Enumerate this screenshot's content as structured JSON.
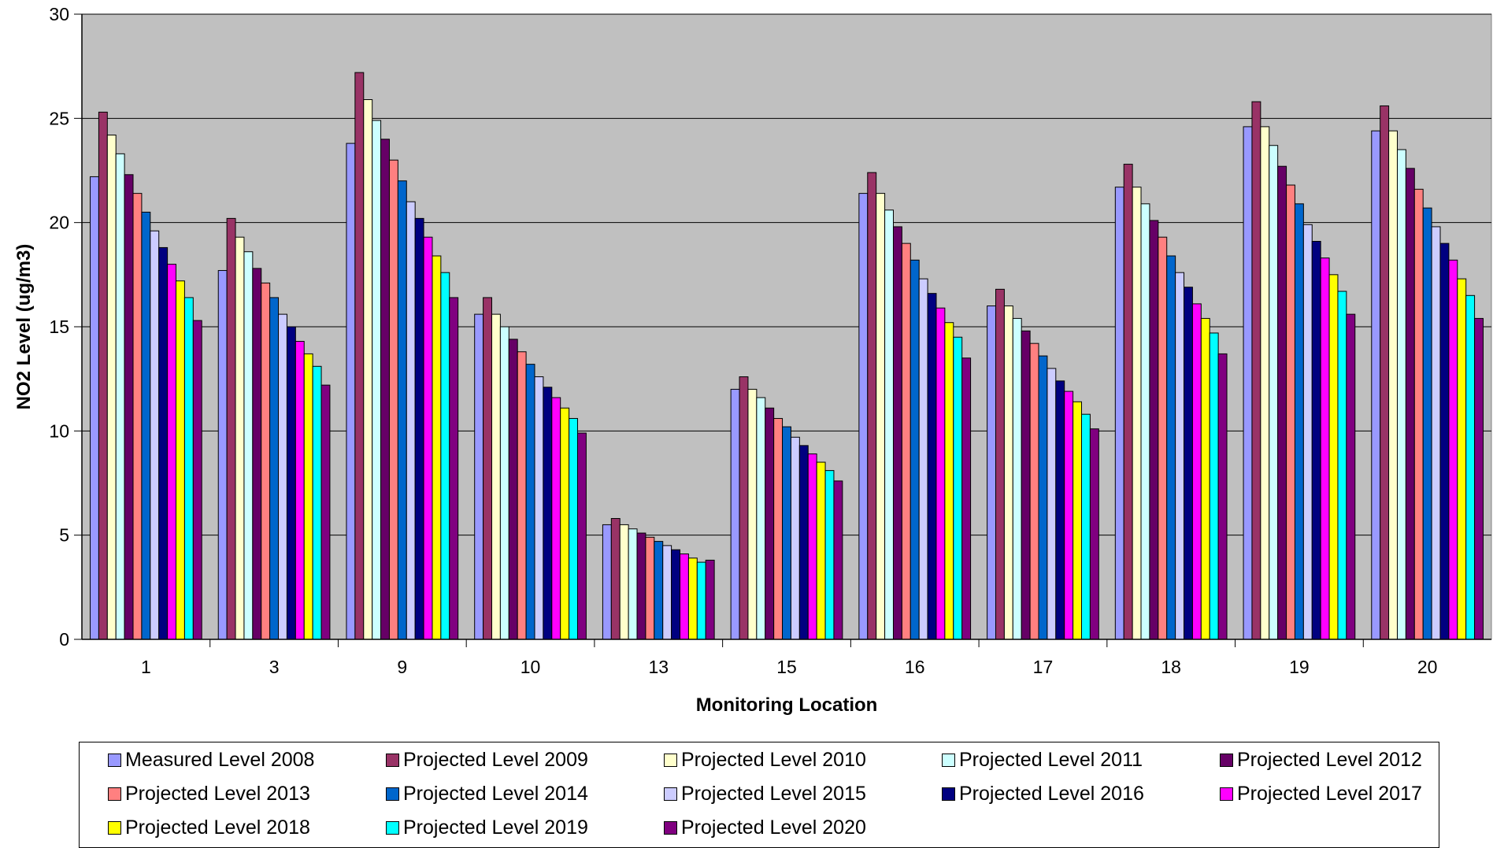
{
  "chart_data": {
    "type": "bar",
    "title": "",
    "xlabel": "Monitoring Location",
    "ylabel": "NO2 Level (ug/m3)",
    "ylim": [
      0,
      30
    ],
    "yticks": [
      "0",
      "5",
      "10",
      "15",
      "20",
      "25",
      "30"
    ],
    "grid": true,
    "legend_position": "bottom",
    "plot_background": "#C0C0C0",
    "categories": [
      "1",
      "3",
      "9",
      "10",
      "13",
      "15",
      "16",
      "17",
      "18",
      "19",
      "20"
    ],
    "series": [
      {
        "name": "Measured Level 2008",
        "color": "#9999FF",
        "values": [
          22.2,
          17.7,
          23.8,
          15.6,
          5.5,
          12.0,
          21.4,
          16.0,
          21.7,
          24.6,
          24.4
        ]
      },
      {
        "name": "Projected Level 2009",
        "color": "#993366",
        "values": [
          25.3,
          20.2,
          27.2,
          16.4,
          5.8,
          12.6,
          22.4,
          16.8,
          22.8,
          25.8,
          25.6
        ]
      },
      {
        "name": "Projected Level 2010",
        "color": "#FFFFCC",
        "values": [
          24.2,
          19.3,
          25.9,
          15.6,
          5.5,
          12.0,
          21.4,
          16.0,
          21.7,
          24.6,
          24.4
        ]
      },
      {
        "name": "Projected Level 2011",
        "color": "#CCFFFF",
        "values": [
          23.3,
          18.6,
          24.9,
          15.0,
          5.3,
          11.6,
          20.6,
          15.4,
          20.9,
          23.7,
          23.5
        ]
      },
      {
        "name": "Projected Level 2012",
        "color": "#660066",
        "values": [
          22.3,
          17.8,
          24.0,
          14.4,
          5.1,
          11.1,
          19.8,
          14.8,
          20.1,
          22.7,
          22.6
        ]
      },
      {
        "name": "Projected Level 2013",
        "color": "#FF8080",
        "values": [
          21.4,
          17.1,
          23.0,
          13.8,
          4.9,
          10.6,
          19.0,
          14.2,
          19.3,
          21.8,
          21.6
        ]
      },
      {
        "name": "Projected Level 2014",
        "color": "#0066CC",
        "values": [
          20.5,
          16.4,
          22.0,
          13.2,
          4.7,
          10.2,
          18.2,
          13.6,
          18.4,
          20.9,
          20.7
        ]
      },
      {
        "name": "Projected Level 2015",
        "color": "#CCCCFF",
        "values": [
          19.6,
          15.6,
          21.0,
          12.6,
          4.5,
          9.7,
          17.3,
          13.0,
          17.6,
          19.9,
          19.8
        ]
      },
      {
        "name": "Projected Level 2016",
        "color": "#000080",
        "values": [
          18.8,
          15.0,
          20.2,
          12.1,
          4.3,
          9.3,
          16.6,
          12.4,
          16.9,
          19.1,
          19.0
        ]
      },
      {
        "name": "Projected Level 2017",
        "color": "#FF00FF",
        "values": [
          18.0,
          14.3,
          19.3,
          11.6,
          4.1,
          8.9,
          15.9,
          11.9,
          16.1,
          18.3,
          18.2
        ]
      },
      {
        "name": "Projected Level 2018",
        "color": "#FFFF00",
        "values": [
          17.2,
          13.7,
          18.4,
          11.1,
          3.9,
          8.5,
          15.2,
          11.4,
          15.4,
          17.5,
          17.3
        ]
      },
      {
        "name": "Projected Level 2019",
        "color": "#00FFFF",
        "values": [
          16.4,
          13.1,
          17.6,
          10.6,
          3.7,
          8.1,
          14.5,
          10.8,
          14.7,
          16.7,
          16.5
        ]
      },
      {
        "name": "Projected Level 2020",
        "color": "#800080",
        "values": [
          15.3,
          12.2,
          16.4,
          9.9,
          3.8,
          7.6,
          13.5,
          10.1,
          13.7,
          15.6,
          15.4
        ]
      }
    ]
  }
}
